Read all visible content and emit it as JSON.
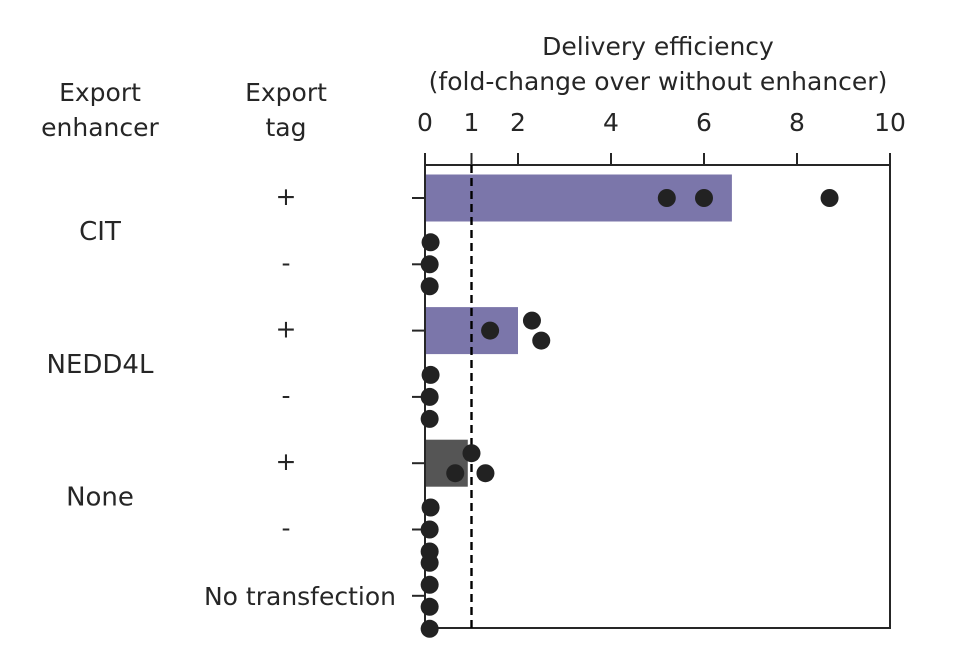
{
  "chart_data": {
    "type": "bar",
    "orientation": "horizontal",
    "title": "",
    "xlabel_line1": "Delivery efficiency",
    "xlabel_line2": "(fold-change over without enhancer)",
    "xlim": [
      0,
      10
    ],
    "xticks": [
      "0",
      "1",
      "2",
      "4",
      "6",
      "8",
      "10"
    ],
    "xtick_values": [
      0,
      1,
      2,
      4,
      6,
      8,
      10
    ],
    "reference_line": 1,
    "column_headers": {
      "enhancer_line1": "Export",
      "enhancer_line2": "enhancer",
      "tag_line1": "Export",
      "tag_line2": "tag"
    },
    "groups": [
      {
        "label": "CIT",
        "rows": [
          0,
          1
        ]
      },
      {
        "label": "NEDD4L",
        "rows": [
          2,
          3
        ]
      },
      {
        "label": "None",
        "rows": [
          4,
          5
        ]
      }
    ],
    "rows": [
      {
        "enhancer": "CIT",
        "tag": "+",
        "value": 6.6,
        "color": "#7b76aa",
        "points": [
          5.2,
          6.0,
          8.7
        ]
      },
      {
        "enhancer": "CIT",
        "tag": "-",
        "value": 0,
        "color": "#7b76aa",
        "points": [
          0.12,
          0.1,
          0.1
        ]
      },
      {
        "enhancer": "NEDD4L",
        "tag": "+",
        "value": 2.0,
        "color": "#7b76aa",
        "points": [
          1.4,
          2.3,
          2.5
        ]
      },
      {
        "enhancer": "NEDD4L",
        "tag": "-",
        "value": 0,
        "color": "#7b76aa",
        "points": [
          0.12,
          0.1,
          0.1
        ]
      },
      {
        "enhancer": "None",
        "tag": "+",
        "value": 0.92,
        "color": "#555555",
        "points": [
          0.65,
          1.3,
          1.0
        ]
      },
      {
        "enhancer": "None",
        "tag": "-",
        "value": 0,
        "color": "#555555",
        "points": [
          0.12,
          0.1,
          0.1
        ]
      },
      {
        "enhancer": "",
        "tag": "",
        "label": "No transfection",
        "value": 0,
        "color": "#555555",
        "points": [
          0.1,
          0.1,
          0.1,
          0.1
        ]
      }
    ],
    "point_color": "#222222"
  }
}
